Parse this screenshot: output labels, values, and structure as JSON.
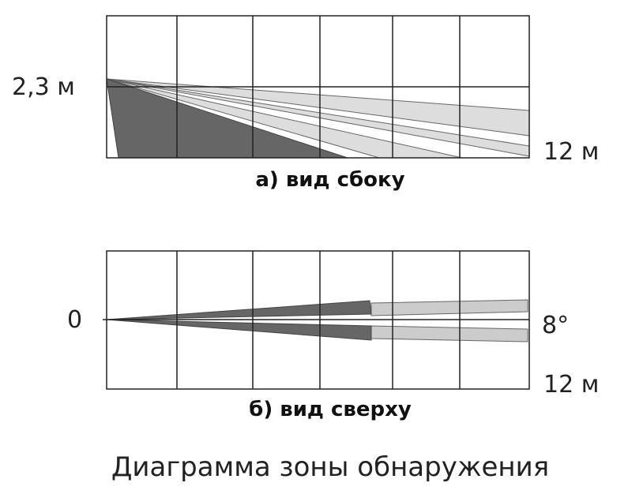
{
  "side_view": {
    "height_label": "2,3 м",
    "distance_label": "12 м",
    "caption": "а) вид сбоку"
  },
  "top_view": {
    "origin_label": "0",
    "angle_label": "8°",
    "distance_label": "12 м",
    "caption": "б) вид сверху"
  },
  "title": "Диаграмма зоны обнаружения"
}
